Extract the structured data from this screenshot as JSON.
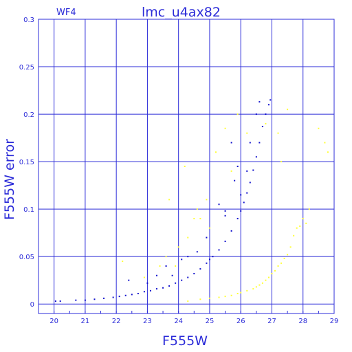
{
  "chart_data": {
    "type": "scatter",
    "title": "lmc_u4ax82",
    "subtitle": "WF4",
    "xlabel": "F555W",
    "ylabel": "F555W error",
    "xlim": [
      19.5,
      29
    ],
    "ylim": [
      -0.01,
      0.3
    ],
    "x_ticks": [
      "20",
      "21",
      "22",
      "23",
      "24",
      "25",
      "26",
      "27",
      "28",
      "29"
    ],
    "y_ticks": [
      "0",
      "0.05",
      "0.1",
      "0.15",
      "0.2",
      "0.25",
      "0.3"
    ],
    "grid": true,
    "colors": {
      "axis": "#2b2bd8",
      "grid": "#2b2bd8",
      "series_main": "#1010cc",
      "series_secondary": "#ffff33"
    },
    "series": [
      {
        "color": "#1010cc",
        "description_hidden": true,
        "points": [
          [
            20.05,
            0.003
          ],
          [
            20.2,
            0.003
          ],
          [
            20.7,
            0.004
          ],
          [
            21.0,
            0.004
          ],
          [
            21.3,
            0.005
          ],
          [
            21.6,
            0.006
          ],
          [
            21.9,
            0.007
          ],
          [
            22.1,
            0.008
          ],
          [
            22.3,
            0.009
          ],
          [
            22.5,
            0.01
          ],
          [
            22.7,
            0.011
          ],
          [
            22.9,
            0.013
          ],
          [
            23.1,
            0.014
          ],
          [
            23.3,
            0.016
          ],
          [
            23.5,
            0.017
          ],
          [
            23.7,
            0.019
          ],
          [
            23.9,
            0.022
          ],
          [
            24.1,
            0.025
          ],
          [
            24.3,
            0.028
          ],
          [
            24.5,
            0.032
          ],
          [
            24.7,
            0.037
          ],
          [
            24.9,
            0.043
          ],
          [
            25.0,
            0.047
          ],
          [
            25.1,
            0.05
          ],
          [
            25.3,
            0.057
          ],
          [
            25.5,
            0.066
          ],
          [
            25.7,
            0.077
          ],
          [
            25.9,
            0.09
          ],
          [
            26.0,
            0.098
          ],
          [
            26.1,
            0.107
          ],
          [
            26.2,
            0.117
          ],
          [
            26.3,
            0.128
          ],
          [
            26.4,
            0.141
          ],
          [
            26.5,
            0.155
          ],
          [
            26.6,
            0.17
          ],
          [
            26.7,
            0.187
          ],
          [
            26.8,
            0.2
          ],
          [
            26.9,
            0.21
          ],
          [
            26.95,
            0.215
          ],
          [
            22.4,
            0.025
          ],
          [
            23.0,
            0.022
          ],
          [
            23.3,
            0.03
          ],
          [
            23.6,
            0.04
          ],
          [
            24.1,
            0.047
          ],
          [
            24.3,
            0.05
          ],
          [
            25.3,
            0.105
          ],
          [
            25.5,
            0.093
          ],
          [
            25.8,
            0.13
          ],
          [
            25.9,
            0.145
          ],
          [
            26.2,
            0.14
          ],
          [
            26.3,
            0.17
          ],
          [
            26.5,
            0.2
          ],
          [
            26.6,
            0.213
          ],
          [
            25.7,
            0.17
          ],
          [
            25.5,
            0.098
          ],
          [
            26.0,
            0.115
          ],
          [
            24.6,
            0.055
          ],
          [
            23.8,
            0.03
          ],
          [
            24.9,
            0.07
          ]
        ]
      },
      {
        "color": "#ffff33",
        "description_hidden": true,
        "points": [
          [
            22.2,
            0.045
          ],
          [
            22.9,
            0.028
          ],
          [
            23.4,
            0.04
          ],
          [
            23.6,
            0.05
          ],
          [
            24.0,
            0.06
          ],
          [
            24.3,
            0.07
          ],
          [
            24.5,
            0.09
          ],
          [
            24.6,
            0.1
          ],
          [
            24.9,
            0.11
          ],
          [
            25.2,
            0.16
          ],
          [
            25.5,
            0.185
          ],
          [
            25.7,
            0.14
          ],
          [
            25.9,
            0.2
          ],
          [
            26.2,
            0.18
          ],
          [
            24.2,
            0.145
          ],
          [
            23.7,
            0.11
          ],
          [
            23.9,
            0.04
          ],
          [
            24.7,
            0.09
          ],
          [
            25.0,
            0.08
          ],
          [
            24.3,
            0.003
          ],
          [
            24.7,
            0.005
          ],
          [
            25.0,
            0.006
          ],
          [
            25.3,
            0.007
          ],
          [
            25.5,
            0.008
          ],
          [
            25.7,
            0.009
          ],
          [
            25.9,
            0.011
          ],
          [
            26.0,
            0.012
          ],
          [
            26.2,
            0.014
          ],
          [
            26.4,
            0.016
          ],
          [
            26.5,
            0.018
          ],
          [
            26.6,
            0.02
          ],
          [
            26.7,
            0.022
          ],
          [
            26.8,
            0.025
          ],
          [
            26.9,
            0.028
          ],
          [
            27.0,
            0.032
          ],
          [
            27.1,
            0.035
          ],
          [
            27.2,
            0.04
          ],
          [
            27.3,
            0.043
          ],
          [
            27.4,
            0.048
          ],
          [
            27.5,
            0.052
          ],
          [
            27.6,
            0.06
          ],
          [
            27.7,
            0.072
          ],
          [
            27.8,
            0.08
          ],
          [
            27.9,
            0.082
          ],
          [
            28.0,
            0.09
          ],
          [
            28.1,
            0.085
          ],
          [
            28.2,
            0.1
          ],
          [
            28.5,
            0.185
          ],
          [
            28.7,
            0.17
          ],
          [
            28.8,
            0.16
          ],
          [
            27.2,
            0.18
          ],
          [
            27.5,
            0.205
          ],
          [
            27.3,
            0.15
          ],
          [
            26.8,
            0.19
          ]
        ]
      }
    ]
  }
}
